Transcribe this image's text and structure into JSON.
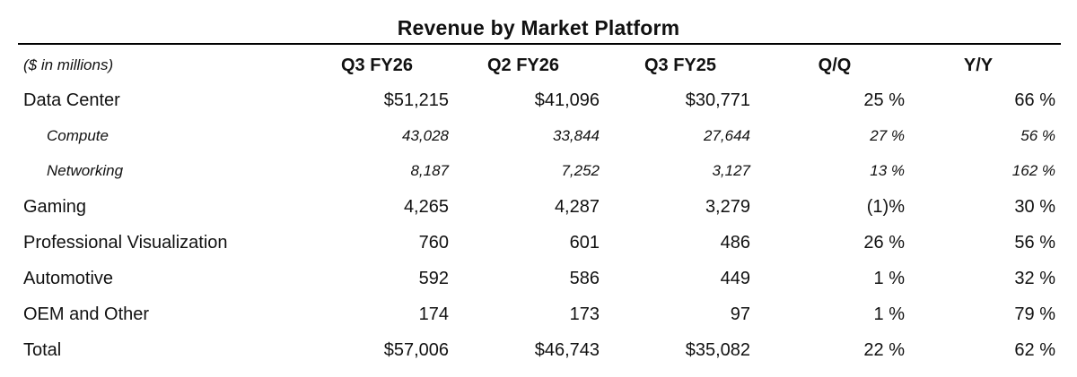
{
  "table": {
    "title": "Revenue by Market Platform",
    "units_label": "($ in millions)",
    "columns": [
      "Q3 FY26",
      "Q2 FY26",
      "Q3 FY25",
      "Q/Q",
      "Y/Y"
    ],
    "rows": [
      {
        "label": "Data Center",
        "values": [
          "$51,215",
          "$41,096",
          "$30,771",
          "25 %",
          "66 %"
        ]
      },
      {
        "label": "Compute",
        "values": [
          "43,028",
          "33,844",
          "27,644",
          "27 %",
          "56 %"
        ]
      },
      {
        "label": "Networking",
        "values": [
          "8,187",
          "7,252",
          "3,127",
          "13 %",
          "162 %"
        ]
      },
      {
        "label": "Gaming",
        "values": [
          "4,265",
          "4,287",
          "3,279",
          "(1)%",
          "30 %"
        ]
      },
      {
        "label": "Professional Visualization",
        "values": [
          "760",
          "601",
          "486",
          "26 %",
          "56 %"
        ]
      },
      {
        "label": "Automotive",
        "values": [
          "592",
          "586",
          "449",
          "1 %",
          "32 %"
        ]
      },
      {
        "label": "OEM and Other",
        "values": [
          "174",
          "173",
          "97",
          "1 %",
          "79 %"
        ]
      },
      {
        "label": "Total",
        "values": [
          "$57,006",
          "$46,743",
          "$35,082",
          "22 %",
          "62 %"
        ]
      }
    ]
  }
}
